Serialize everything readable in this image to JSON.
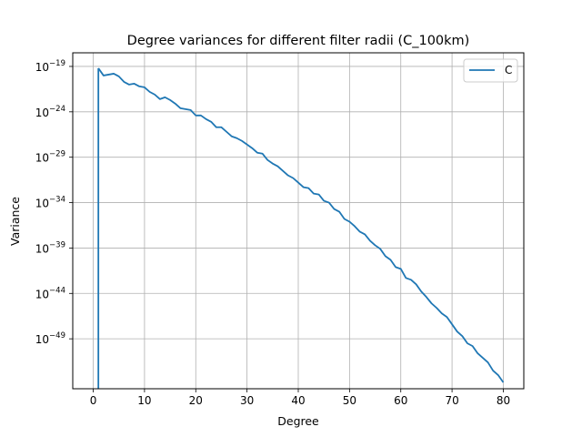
{
  "chart_data": {
    "type": "line",
    "title": "Degree variances for different filter radii (C_100km)",
    "xlabel": "Degree",
    "ylabel": "Variance",
    "yscale": "log",
    "xlim": [
      -4,
      84
    ],
    "ylim_log10": [
      -54.5,
      -17.5
    ],
    "x_ticks": [
      0,
      10,
      20,
      30,
      40,
      50,
      60,
      70,
      80
    ],
    "y_ticks": [
      {
        "base": "10",
        "exp": "−19",
        "log10": -19
      },
      {
        "base": "10",
        "exp": "−24",
        "log10": -24
      },
      {
        "base": "10",
        "exp": "−29",
        "log10": -29
      },
      {
        "base": "10",
        "exp": "−34",
        "log10": -34
      },
      {
        "base": "10",
        "exp": "−39",
        "log10": -39
      },
      {
        "base": "10",
        "exp": "−44",
        "log10": -44
      },
      {
        "base": "10",
        "exp": "−49",
        "log10": -49
      }
    ],
    "grid": true,
    "legend_position": "top-right",
    "series": [
      {
        "name": "C",
        "color": "#1f77b4",
        "x": [
          1,
          2,
          3,
          4,
          5,
          6,
          7,
          8,
          9,
          10,
          11,
          12,
          13,
          14,
          15,
          16,
          17,
          18,
          19,
          20,
          21,
          22,
          23,
          24,
          25,
          26,
          27,
          28,
          29,
          30,
          31,
          32,
          33,
          34,
          35,
          36,
          37,
          38,
          39,
          40,
          41,
          42,
          43,
          44,
          45,
          46,
          47,
          48,
          49,
          50,
          51,
          52,
          53,
          54,
          55,
          56,
          57,
          58,
          59,
          60,
          61,
          62,
          63,
          64,
          65,
          66,
          67,
          68,
          69,
          70,
          71,
          72,
          73,
          74,
          75,
          76,
          77,
          78,
          79,
          80
        ],
        "log10_values": [
          -19.2,
          -20.0,
          -19.9,
          -19.8,
          -20.1,
          -20.7,
          -21.0,
          -20.9,
          -21.2,
          -21.3,
          -21.8,
          -22.1,
          -22.6,
          -22.4,
          -22.7,
          -23.1,
          -23.6,
          -23.7,
          -23.8,
          -24.4,
          -24.4,
          -24.8,
          -25.1,
          -25.7,
          -25.7,
          -26.2,
          -26.7,
          -26.9,
          -27.2,
          -27.6,
          -28.0,
          -28.5,
          -28.6,
          -29.3,
          -29.7,
          -30.0,
          -30.5,
          -31.0,
          -31.3,
          -31.8,
          -32.3,
          -32.4,
          -33.0,
          -33.1,
          -33.8,
          -34.0,
          -34.7,
          -35.0,
          -35.8,
          -36.1,
          -36.6,
          -37.2,
          -37.5,
          -38.2,
          -38.7,
          -39.1,
          -39.9,
          -40.3,
          -41.1,
          -41.3,
          -42.3,
          -42.5,
          -43.0,
          -43.8,
          -44.4,
          -45.1,
          -45.6,
          -46.2,
          -46.6,
          -47.4,
          -48.2,
          -48.7,
          -49.5,
          -49.8,
          -50.6,
          -51.1,
          -51.6,
          -52.5,
          -53.0,
          -53.8
        ]
      }
    ],
    "drop_line": {
      "x": 1,
      "from_log10": -19.2,
      "to": "bottom"
    }
  }
}
